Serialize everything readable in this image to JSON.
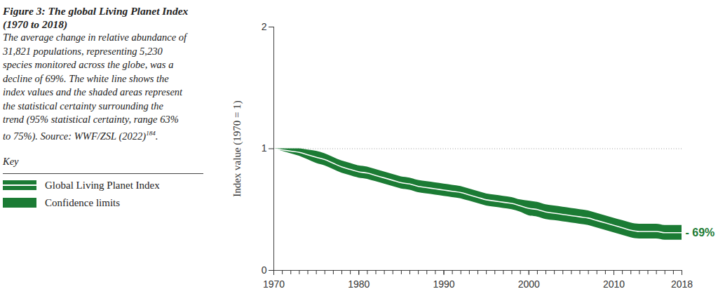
{
  "chart_data": {
    "type": "line",
    "title": "Figure 3: The global Living Planet Index (1970 to 2018)",
    "subtitle": "The average change in relative abundance of 31,821 populations, representing 5,230 species monitored across the globe, was a decline of 69%. The white line shows the index values and the shaded areas represent the statistical certainty surrounding the trend (95% statistical certainty, range 63% to 75%). Source: WWF/ZSL (2022)",
    "note_ref": "184",
    "subtitle_end": ".",
    "key_title": "Key",
    "legend": "left",
    "y_label": "Index value (1970 = 1)",
    "x": [
      1970,
      1971,
      1972,
      1973,
      1974,
      1975,
      1976,
      1977,
      1978,
      1979,
      1980,
      1981,
      1982,
      1983,
      1984,
      1985,
      1986,
      1987,
      1988,
      1989,
      1990,
      1991,
      1992,
      1993,
      1994,
      1995,
      1996,
      1997,
      1998,
      1999,
      2000,
      2001,
      2002,
      2003,
      2004,
      2005,
      2006,
      2007,
      2008,
      2009,
      2010,
      2011,
      2012,
      2013,
      2014,
      2015,
      2016,
      2017,
      2018
    ],
    "series": [
      {
        "name": "Global Living Planet Index",
        "color": "#ffffff",
        "values": [
          1.0,
          0.99,
          0.98,
          0.97,
          0.95,
          0.93,
          0.91,
          0.88,
          0.85,
          0.83,
          0.81,
          0.8,
          0.78,
          0.76,
          0.74,
          0.72,
          0.71,
          0.69,
          0.68,
          0.67,
          0.66,
          0.65,
          0.64,
          0.62,
          0.6,
          0.58,
          0.57,
          0.56,
          0.55,
          0.53,
          0.51,
          0.5,
          0.48,
          0.47,
          0.46,
          0.45,
          0.44,
          0.43,
          0.41,
          0.39,
          0.37,
          0.35,
          0.33,
          0.32,
          0.32,
          0.32,
          0.31,
          0.31,
          0.31
        ]
      },
      {
        "name": "Confidence limits",
        "color": "#1b7b34",
        "upper": [
          1.0,
          1.0,
          1.0,
          1.0,
          0.99,
          0.98,
          0.96,
          0.93,
          0.9,
          0.88,
          0.86,
          0.85,
          0.83,
          0.81,
          0.79,
          0.77,
          0.76,
          0.74,
          0.73,
          0.72,
          0.71,
          0.7,
          0.69,
          0.67,
          0.65,
          0.63,
          0.62,
          0.61,
          0.6,
          0.58,
          0.57,
          0.56,
          0.54,
          0.53,
          0.52,
          0.51,
          0.5,
          0.49,
          0.47,
          0.45,
          0.43,
          0.41,
          0.39,
          0.38,
          0.38,
          0.38,
          0.37,
          0.37,
          0.37
        ],
        "lower": [
          1.0,
          0.98,
          0.96,
          0.94,
          0.91,
          0.88,
          0.86,
          0.83,
          0.8,
          0.78,
          0.76,
          0.75,
          0.73,
          0.71,
          0.69,
          0.67,
          0.66,
          0.64,
          0.63,
          0.62,
          0.61,
          0.6,
          0.59,
          0.57,
          0.55,
          0.53,
          0.52,
          0.51,
          0.5,
          0.48,
          0.45,
          0.44,
          0.42,
          0.41,
          0.4,
          0.39,
          0.38,
          0.37,
          0.35,
          0.33,
          0.31,
          0.29,
          0.27,
          0.26,
          0.26,
          0.26,
          0.25,
          0.25,
          0.25
        ]
      }
    ],
    "baseline": 1,
    "annotation": "- 69%",
    "xlim": [
      1970,
      2018
    ],
    "xticks": [
      1970,
      1980,
      1990,
      2000,
      2010,
      2018
    ],
    "ylim": [
      0,
      2
    ],
    "yticks": [
      0,
      1,
      2
    ]
  }
}
